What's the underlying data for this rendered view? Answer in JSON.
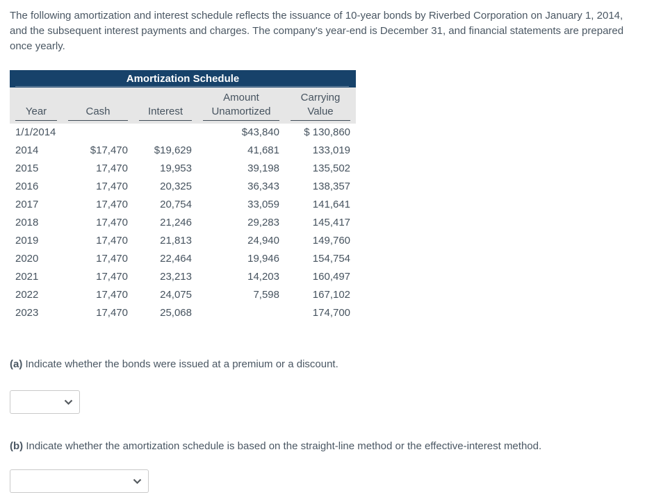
{
  "intro": "The following amortization and interest schedule reflects the issuance of 10-year bonds by Riverbed Corporation on January 1, 2014, and the subsequent interest payments and charges. The company's year-end is December 31, and financial statements are prepared once yearly.",
  "table": {
    "title": "Amortization Schedule",
    "columns": [
      {
        "lines": [
          "Year"
        ]
      },
      {
        "lines": [
          "Cash"
        ]
      },
      {
        "lines": [
          "Interest"
        ]
      },
      {
        "lines": [
          "Amount",
          "Unamortized"
        ]
      },
      {
        "lines": [
          "Carrying",
          "Value"
        ]
      }
    ],
    "rows": [
      [
        "1/1/2014",
        "",
        "",
        "$43,840",
        "$ 130,860"
      ],
      [
        "2014",
        "$17,470",
        "$19,629",
        "41,681",
        "133,019"
      ],
      [
        "2015",
        "17,470",
        "19,953",
        "39,198",
        "135,502"
      ],
      [
        "2016",
        "17,470",
        "20,325",
        "36,343",
        "138,357"
      ],
      [
        "2017",
        "17,470",
        "20,754",
        "33,059",
        "141,641"
      ],
      [
        "2018",
        "17,470",
        "21,246",
        "29,283",
        "145,417"
      ],
      [
        "2019",
        "17,470",
        "21,813",
        "24,940",
        "149,760"
      ],
      [
        "2020",
        "17,470",
        "22,464",
        "19,946",
        "154,754"
      ],
      [
        "2021",
        "17,470",
        "23,213",
        "14,203",
        "160,497"
      ],
      [
        "2022",
        "17,470",
        "24,075",
        "7,598",
        "167,102"
      ],
      [
        "2023",
        "17,470",
        "25,068",
        "",
        "174,700"
      ]
    ]
  },
  "questions": {
    "a": {
      "label": "(a)",
      "text": "Indicate whether the bonds were issued at a premium or a discount.",
      "selected_value": ""
    },
    "b": {
      "label": "(b)",
      "text": "Indicate whether the amortization schedule is based on the straight-line method or the effective-interest method.",
      "selected_value": ""
    }
  },
  "colors": {
    "table_header_bg": "#17426a",
    "table_header_text": "#ffffff",
    "column_header_bg": "#e6e6e6",
    "body_text": "#46535f"
  }
}
